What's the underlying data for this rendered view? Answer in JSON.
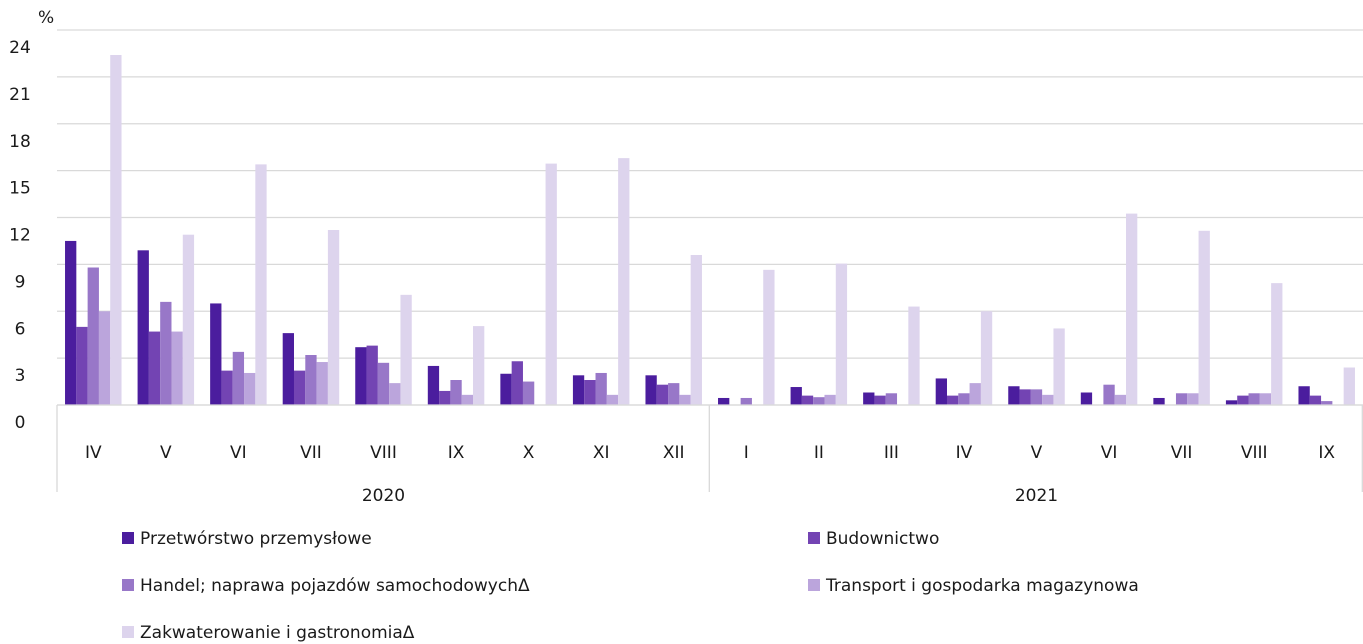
{
  "chart_data": {
    "type": "bar",
    "y_label": "%",
    "category_groups": [
      {
        "label": "2020",
        "categories": [
          "IV",
          "V",
          "VI",
          "VII",
          "VIII",
          "IX",
          "X",
          "XI",
          "XII"
        ]
      },
      {
        "label": "2021",
        "categories": [
          "I",
          "II",
          "III",
          "IV",
          "V",
          "VI",
          "VII",
          "VIII",
          "IX"
        ]
      }
    ],
    "ylim": [
      0,
      24
    ],
    "yticks": [
      0,
      3,
      6,
      9,
      12,
      15,
      18,
      21,
      24
    ],
    "grid": true,
    "series": [
      {
        "name": "Przetwórstwo przemysłowe",
        "color": "#4b1d9e",
        "values": [
          10.5,
          9.9,
          6.5,
          4.6,
          3.7,
          2.5,
          2.0,
          1.9,
          1.9,
          0.45,
          1.15,
          0.8,
          1.7,
          1.2,
          0.8,
          0.45,
          0.3,
          1.2
        ]
      },
      {
        "name": "Budownictwo",
        "color": "#7344b3",
        "values": [
          5.0,
          4.7,
          2.2,
          2.2,
          3.8,
          0.9,
          2.8,
          1.6,
          1.3,
          0,
          0.6,
          0.6,
          0.6,
          1.0,
          0,
          0,
          0.6,
          0.6
        ]
      },
      {
        "name": "Handel; naprawa pojazdów samochodowychΔ",
        "color": "#9877c8",
        "values": [
          8.8,
          6.6,
          3.4,
          3.2,
          2.7,
          1.6,
          1.5,
          2.05,
          1.4,
          0.45,
          0.5,
          0.75,
          0.75,
          1.0,
          1.3,
          0.75,
          0.75,
          0.25
        ]
      },
      {
        "name": "Transport i gospodarka magazynowa",
        "color": "#bba5dc",
        "values": [
          6.0,
          4.7,
          2.05,
          2.75,
          1.4,
          0.65,
          0,
          0.65,
          0.65,
          0,
          0.65,
          0,
          1.4,
          0.65,
          0.65,
          0.75,
          0.75,
          0
        ]
      },
      {
        "name": "Zakwaterowanie i gastronomiaΔ",
        "color": "#ddd4ed",
        "values": [
          22.4,
          10.9,
          15.4,
          11.2,
          7.05,
          5.05,
          15.45,
          15.8,
          9.6,
          8.65,
          9.05,
          6.3,
          6.0,
          4.9,
          12.25,
          11.15,
          7.8,
          2.4
        ]
      }
    ]
  }
}
